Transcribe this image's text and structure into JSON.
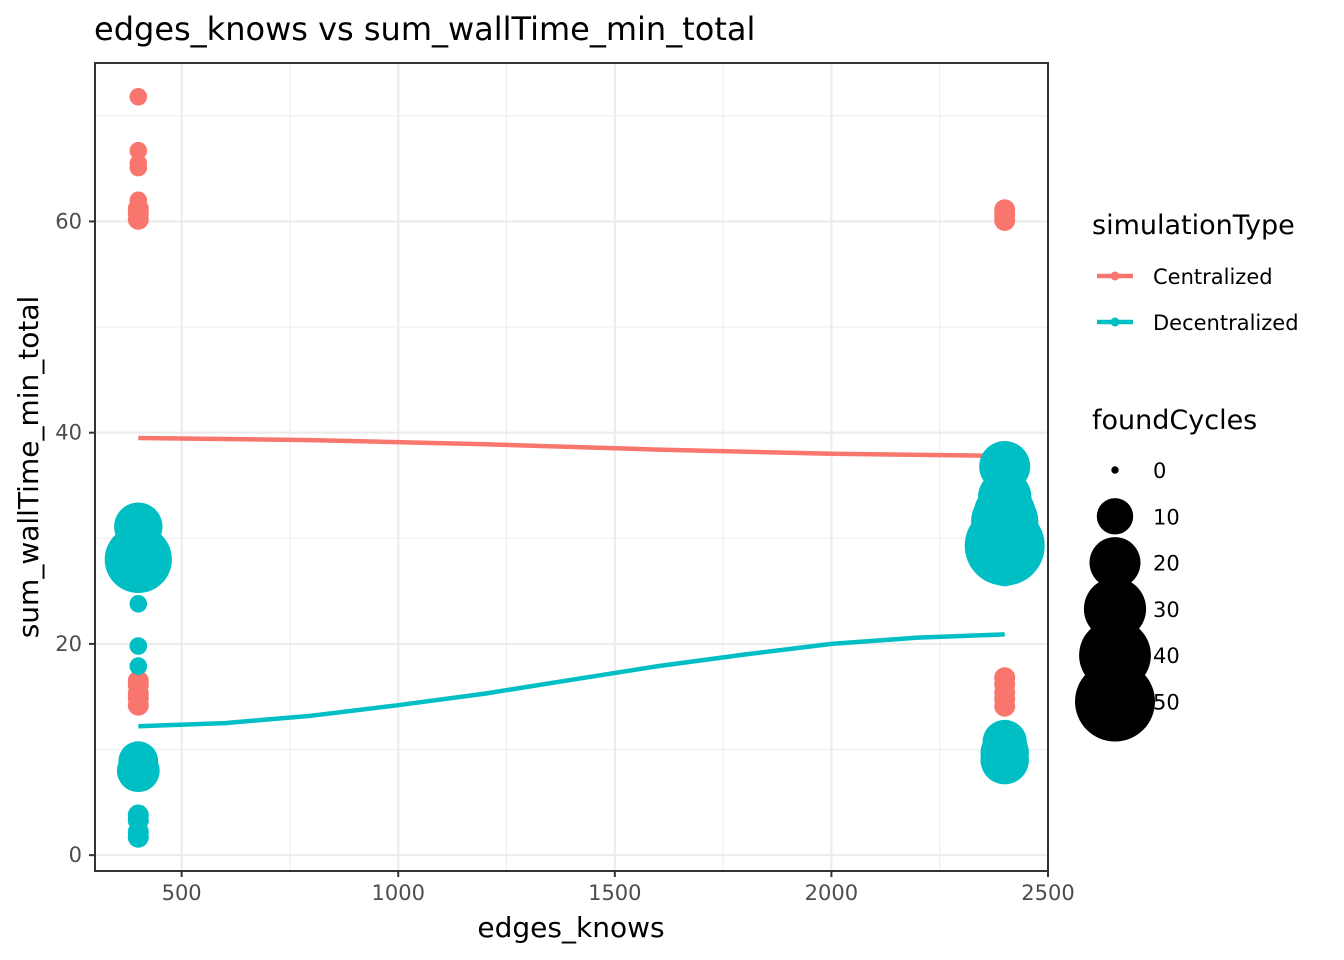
{
  "chart_data": {
    "type": "scatter",
    "title": "edges_knows  vs  sum_wallTime_min_total",
    "xlabel": "edges_knows",
    "ylabel": "sum_wallTime_min_total",
    "xlim": [
      300,
      2500
    ],
    "ylim": [
      -1.5,
      75
    ],
    "x_ticks": [
      500,
      1000,
      1500,
      2000,
      2500
    ],
    "x_tick_labels": [
      "500",
      "1000",
      "1500",
      "2000",
      "2500"
    ],
    "y_ticks": [
      0,
      20,
      40,
      60
    ],
    "y_tick_labels": [
      "0",
      "20",
      "40",
      "60"
    ],
    "grid": true,
    "colors": {
      "Centralized": "#F8766D",
      "Decentralized": "#00BFC4"
    },
    "series": [
      {
        "name": "Centralized",
        "color": "#F8766D",
        "points": [
          {
            "x": 400,
            "y": 71.8,
            "size": 2
          },
          {
            "x": 400,
            "y": 66.7,
            "size": 2
          },
          {
            "x": 400,
            "y": 65.5,
            "size": 2
          },
          {
            "x": 400,
            "y": 65.1,
            "size": 2
          },
          {
            "x": 400,
            "y": 62.0,
            "size": 2
          },
          {
            "x": 400,
            "y": 61.2,
            "size": 3
          },
          {
            "x": 400,
            "y": 60.8,
            "size": 3
          },
          {
            "x": 400,
            "y": 60.2,
            "size": 3
          },
          {
            "x": 400,
            "y": 16.5,
            "size": 3
          },
          {
            "x": 400,
            "y": 16.1,
            "size": 3
          },
          {
            "x": 400,
            "y": 15.3,
            "size": 3
          },
          {
            "x": 400,
            "y": 14.9,
            "size": 3
          },
          {
            "x": 400,
            "y": 14.2,
            "size": 3
          },
          {
            "x": 2400,
            "y": 61.1,
            "size": 3
          },
          {
            "x": 2400,
            "y": 60.6,
            "size": 3
          },
          {
            "x": 2400,
            "y": 60.1,
            "size": 3
          },
          {
            "x": 2400,
            "y": 16.8,
            "size": 3
          },
          {
            "x": 2400,
            "y": 16.2,
            "size": 3
          },
          {
            "x": 2400,
            "y": 15.4,
            "size": 3
          },
          {
            "x": 2400,
            "y": 14.8,
            "size": 3
          },
          {
            "x": 2400,
            "y": 14.1,
            "size": 3
          }
        ],
        "smooth": [
          [
            400,
            39.5
          ],
          [
            800,
            39.3
          ],
          [
            1200,
            38.9
          ],
          [
            1600,
            38.4
          ],
          [
            2000,
            38.0
          ],
          [
            2400,
            37.8
          ]
        ]
      },
      {
        "name": "Decentralized",
        "color": "#00BFC4",
        "points": [
          {
            "x": 400,
            "y": 31.1,
            "size": 18
          },
          {
            "x": 400,
            "y": 28.0,
            "size": 35
          },
          {
            "x": 400,
            "y": 23.8,
            "size": 2
          },
          {
            "x": 400,
            "y": 19.8,
            "size": 2
          },
          {
            "x": 400,
            "y": 17.9,
            "size": 2
          },
          {
            "x": 400,
            "y": 8.9,
            "size": 12
          },
          {
            "x": 400,
            "y": 8.0,
            "size": 14
          },
          {
            "x": 400,
            "y": 3.8,
            "size": 3
          },
          {
            "x": 400,
            "y": 3.3,
            "size": 3
          },
          {
            "x": 400,
            "y": 2.2,
            "size": 3
          },
          {
            "x": 400,
            "y": 1.7,
            "size": 3
          },
          {
            "x": 2400,
            "y": 36.8,
            "size": 20
          },
          {
            "x": 2400,
            "y": 33.9,
            "size": 22
          },
          {
            "x": 2400,
            "y": 33.0,
            "size": 22
          },
          {
            "x": 2400,
            "y": 32.3,
            "size": 30
          },
          {
            "x": 2400,
            "y": 31.6,
            "size": 35
          },
          {
            "x": 2400,
            "y": 30.8,
            "size": 30
          },
          {
            "x": 2400,
            "y": 29.3,
            "size": 50
          },
          {
            "x": 2400,
            "y": 27.0,
            "size": 8
          },
          {
            "x": 2400,
            "y": 10.7,
            "size": 15
          },
          {
            "x": 2400,
            "y": 10.2,
            "size": 15
          },
          {
            "x": 2400,
            "y": 9.7,
            "size": 18
          },
          {
            "x": 2400,
            "y": 9.0,
            "size": 18
          }
        ],
        "smooth": [
          [
            400,
            12.2
          ],
          [
            600,
            12.5
          ],
          [
            800,
            13.2
          ],
          [
            1000,
            14.2
          ],
          [
            1200,
            15.3
          ],
          [
            1400,
            16.6
          ],
          [
            1600,
            17.9
          ],
          [
            1800,
            19.0
          ],
          [
            2000,
            20.0
          ],
          [
            2200,
            20.6
          ],
          [
            2400,
            20.9
          ]
        ]
      }
    ],
    "legend": {
      "position": "right",
      "color_title": "simulationType",
      "color_entries": [
        "Centralized",
        "Decentralized"
      ],
      "size_title": "foundCycles",
      "size_entries": [
        {
          "label": "0",
          "value": 0
        },
        {
          "label": "10",
          "value": 10
        },
        {
          "label": "20",
          "value": 20
        },
        {
          "label": "30",
          "value": 30
        },
        {
          "label": "40",
          "value": 40
        },
        {
          "label": "50",
          "value": 50
        }
      ]
    }
  }
}
